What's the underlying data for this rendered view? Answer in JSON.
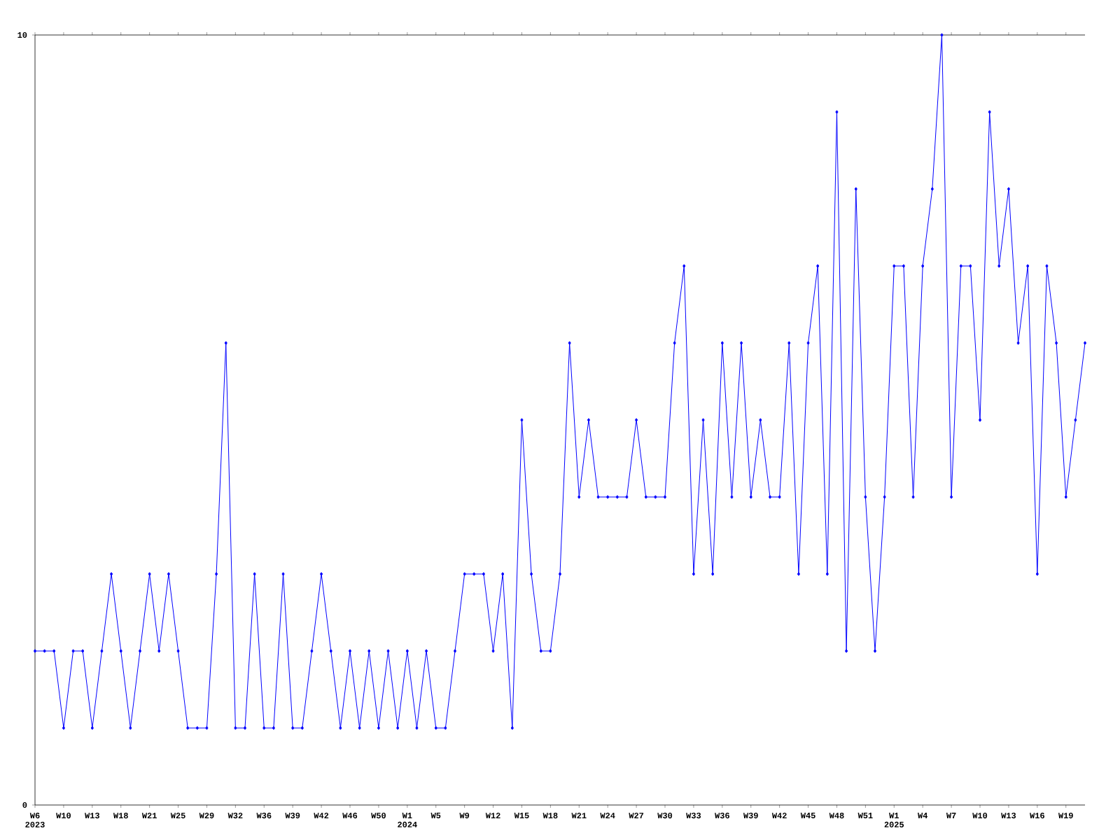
{
  "chart_data": {
    "type": "line",
    "categories": [
      "W6 2023",
      null,
      null,
      "W10",
      null,
      null,
      "W13",
      null,
      null,
      "W18",
      null,
      null,
      "W21",
      null,
      null,
      "W25",
      null,
      null,
      "W29",
      null,
      null,
      "W32",
      null,
      null,
      "W36",
      null,
      null,
      "W39",
      null,
      null,
      "W42",
      null,
      null,
      "W46",
      null,
      null,
      "W50",
      null,
      null,
      "W1 2024",
      null,
      null,
      "W5",
      null,
      null,
      "W9",
      null,
      null,
      "W12",
      null,
      null,
      "W15",
      null,
      null,
      "W18",
      null,
      null,
      "W21",
      null,
      null,
      "W24",
      null,
      null,
      "W27",
      null,
      null,
      "W30",
      null,
      null,
      "W33",
      null,
      null,
      "W36",
      null,
      null,
      "W39",
      null,
      null,
      "W42",
      null,
      null,
      "W45",
      null,
      null,
      "W48",
      null,
      null,
      "W51",
      null,
      null,
      "W1 2025",
      null,
      null,
      "W4",
      null,
      null,
      "W7",
      null,
      null,
      "W10",
      null,
      null,
      "W13",
      null,
      null,
      "W16",
      null,
      null,
      "W19",
      null,
      null
    ],
    "values": [
      2,
      2,
      2,
      1,
      2,
      2,
      1,
      2,
      3,
      2,
      1,
      2,
      3,
      2,
      3,
      2,
      1,
      1,
      1,
      3,
      6,
      1,
      1,
      3,
      1,
      1,
      3,
      1,
      1,
      2,
      3,
      2,
      1,
      2,
      1,
      2,
      1,
      2,
      1,
      2,
      1,
      2,
      1,
      1,
      2,
      3,
      3,
      3,
      2,
      3,
      1,
      5,
      3,
      2,
      2,
      3,
      6,
      4,
      5,
      4,
      4,
      4,
      4,
      5,
      4,
      4,
      4,
      6,
      7,
      3,
      5,
      3,
      6,
      4,
      6,
      4,
      5,
      4,
      4,
      6,
      3,
      6,
      7,
      3,
      9,
      2,
      8,
      4,
      2,
      4,
      7,
      7,
      4,
      7,
      8,
      10,
      4,
      7,
      7,
      5,
      9,
      7,
      8,
      6,
      7,
      3,
      7,
      6,
      4,
      5,
      6
    ],
    "color": "#0000ff",
    "marker": "diamond",
    "ylim": [
      0,
      10
    ],
    "yticks": [
      0,
      10
    ]
  }
}
